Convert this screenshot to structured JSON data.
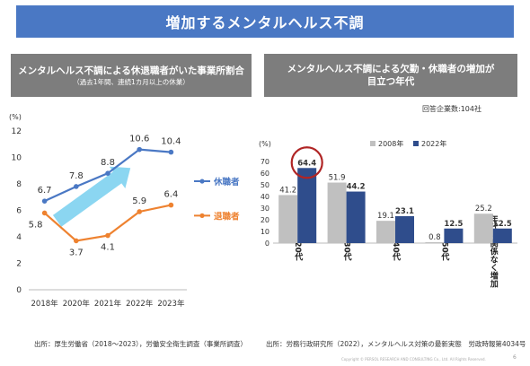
{
  "title": "増加するメンタルヘルス不調",
  "left_panel": {
    "title": "メンタルヘルス不調による休退職者がいた事業所割合",
    "subtitle": "（過去1年間、連続1カ月以上の休業）",
    "source": "出所：厚生労働省（2018～2023），労働安全衛生調査（事業所調査）"
  },
  "right_panel": {
    "title_line1": "メンタルヘルス不調による欠勤・休職者の増加が",
    "title_line2": "目立つ年代",
    "respondents": "回答企業数:104社",
    "source": "出所：労務行政研究所（2022），メンタルヘルス対策の最新実態　労政時報第4034号"
  },
  "footer": {
    "copyright": "Copyright ©  PERSOL RESEARCH AND CONSULTING Co., Ltd. All Rights Reserved.",
    "page_number": "6"
  },
  "colors": {
    "title_bar": "#4a78c4",
    "panel_header": "#7d7d7d",
    "leave_series": "#4a78c4",
    "resign_series": "#ee8230",
    "bar_2008": "#c0c0c0",
    "bar_2022": "#2f4d8c",
    "highlight_circle": "#b02525",
    "trend_arrow": "#7ed1ef"
  },
  "chart_data": [
    {
      "type": "line",
      "ylabel": "(%)",
      "ylim": [
        0,
        12
      ],
      "yticks": [
        "0",
        "2",
        "4",
        "6",
        "8",
        "10",
        "12"
      ],
      "categories": [
        "2018年",
        "2020年",
        "2021年",
        "2022年",
        "2023年"
      ],
      "grid": false,
      "legend": "right",
      "annotation": "upward trend arrow",
      "series": [
        {
          "name": "休職者",
          "values": [
            6.7,
            7.8,
            8.8,
            10.6,
            10.4
          ],
          "labels": [
            "6.7",
            "7.8",
            "8.8",
            "10.6",
            "10.4"
          ]
        },
        {
          "name": "退職者",
          "values": [
            5.8,
            3.7,
            4.1,
            5.9,
            6.4
          ],
          "labels": [
            "5.8",
            "3.7",
            "4.1",
            "5.9",
            "6.4"
          ]
        }
      ]
    },
    {
      "type": "bar",
      "ylabel": "(%)",
      "ylim": [
        0,
        70
      ],
      "yticks": [
        "0",
        "10",
        "20",
        "30",
        "40",
        "50",
        "60",
        "70"
      ],
      "categories": [
        "20代",
        "30代",
        "40代",
        "50代",
        "年代に関係なく増加"
      ],
      "legend": "top-right",
      "highlight": "20代 2022年 (circled)",
      "series": [
        {
          "name": "2008年",
          "values": [
            41.2,
            51.9,
            19.1,
            0.8,
            25.2
          ],
          "labels": [
            "41.2",
            "51.9",
            "19.1",
            "0.8",
            "25.2"
          ]
        },
        {
          "name": "2022年",
          "values": [
            64.4,
            44.2,
            23.1,
            12.5,
            12.5
          ],
          "labels": [
            "64.4",
            "44.2",
            "23.1",
            "12.5",
            "12.5"
          ]
        }
      ]
    }
  ]
}
